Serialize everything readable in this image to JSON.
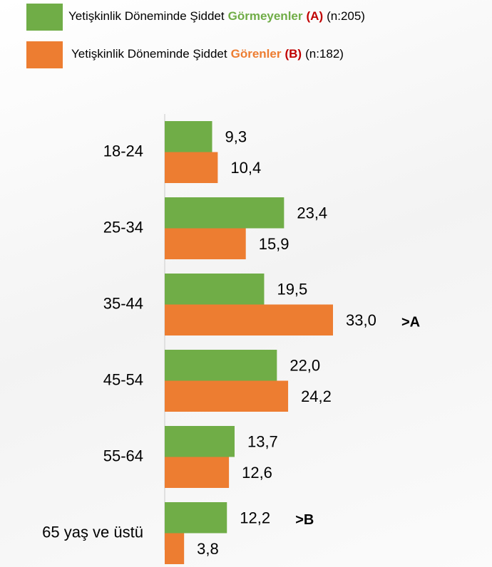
{
  "chart_data": {
    "type": "barh",
    "categories": [
      "18-24",
      "25-34",
      "35-44",
      "45-54",
      "55-64",
      "65 yaş ve üstü"
    ],
    "series": [
      {
        "name": [
          "Yetişkinlik Döneminde Şiddet",
          "Görmeyenler",
          "(A)",
          "(n:205)"
        ],
        "color": "#70ad47",
        "values": [
          9.3,
          23.4,
          19.5,
          22.0,
          13.7,
          12.2
        ],
        "value_labels": [
          "9,3",
          "23,4",
          "19,5",
          "22,0",
          "13,7",
          "12,2"
        ],
        "annotations": [
          null,
          null,
          null,
          null,
          null,
          ">B"
        ]
      },
      {
        "name": [
          "Yetişkinlik Döneminde Şiddet",
          "Görenler",
          "(B)",
          "(n:182)"
        ],
        "color": "#ed7d31",
        "values": [
          10.4,
          15.9,
          33.0,
          24.2,
          12.6,
          3.8
        ],
        "value_labels": [
          "10,4",
          "15,9",
          "33,0",
          "24,2",
          "12,6",
          "3,8"
        ],
        "annotations": [
          null,
          null,
          ">A",
          null,
          null,
          null
        ]
      }
    ],
    "xlim": [
      0,
      33
    ]
  }
}
